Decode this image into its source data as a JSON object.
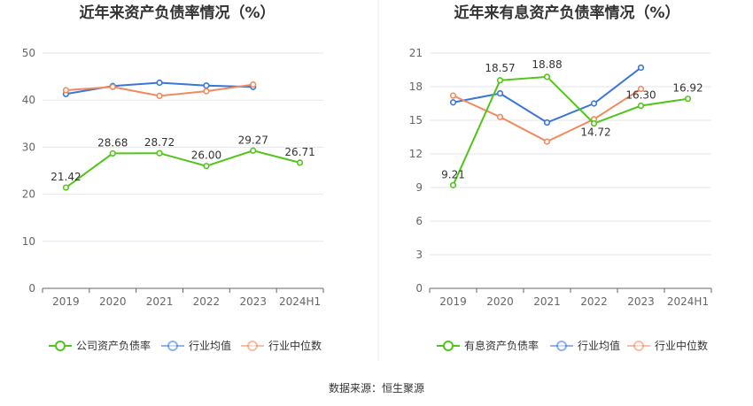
{
  "source_text": "数据来源：恒生聚源",
  "chart_data": [
    {
      "type": "line",
      "title": "近年来资产负债率情况（%）",
      "categories": [
        "2019",
        "2020",
        "2021",
        "2022",
        "2023",
        "2024H1"
      ],
      "ylim": [
        0,
        50
      ],
      "yticks": [
        0,
        10,
        20,
        30,
        40,
        50
      ],
      "grid": true,
      "legend_position": "bottom",
      "series": [
        {
          "name": "公司资产负债率",
          "color": "#52c41a",
          "values": [
            21.42,
            28.68,
            28.72,
            26.0,
            29.27,
            26.71
          ],
          "labels": [
            "21.42",
            "28.68",
            "28.72",
            "26.00",
            "29.27",
            "26.71"
          ]
        },
        {
          "name": "行业均值",
          "color": "#3a75d9",
          "values": [
            41.3,
            43.0,
            43.7,
            43.1,
            42.8,
            null
          ]
        },
        {
          "name": "行业中位数",
          "color": "#f08a5d",
          "values": [
            42.1,
            42.8,
            40.9,
            41.9,
            43.3,
            null
          ]
        }
      ]
    },
    {
      "type": "line",
      "title": "近年来有息资产负债率情况（%）",
      "categories": [
        "2019",
        "2020",
        "2021",
        "2022",
        "2023",
        "2024H1"
      ],
      "ylim": [
        0,
        21
      ],
      "yticks": [
        0,
        3,
        6,
        9,
        12,
        15,
        18,
        21
      ],
      "grid": true,
      "legend_position": "bottom",
      "series": [
        {
          "name": "有息资产负债率",
          "color": "#52c41a",
          "values": [
            9.21,
            18.57,
            18.88,
            14.72,
            16.3,
            16.92
          ],
          "labels": [
            "9.21",
            "18.57",
            "18.88",
            "14.72",
            "16.30",
            "16.92"
          ]
        },
        {
          "name": "行业均值",
          "color": "#3a75d9",
          "values": [
            16.6,
            17.4,
            14.8,
            16.5,
            19.7,
            null
          ]
        },
        {
          "name": "行业中位数",
          "color": "#f08a5d",
          "values": [
            17.2,
            15.3,
            13.1,
            15.1,
            17.8,
            null
          ]
        }
      ]
    }
  ]
}
